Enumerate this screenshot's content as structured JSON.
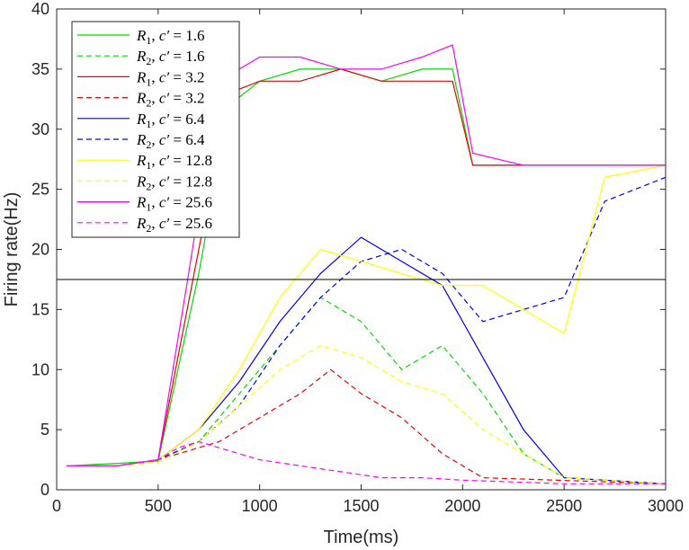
{
  "chart_data": {
    "type": "line",
    "title": "",
    "xlabel": "Time(ms)",
    "ylabel": "Firing rate(Hz)",
    "xlim": [
      0,
      3000
    ],
    "ylim": [
      0,
      40
    ],
    "xticks": [
      0,
      500,
      1000,
      1500,
      2000,
      2500,
      3000
    ],
    "yticks": [
      0,
      5,
      10,
      15,
      20,
      25,
      30,
      35,
      40
    ],
    "xtick_labels": [
      "0",
      "500",
      "1000",
      "1500",
      "2000",
      "2500",
      "3000"
    ],
    "ytick_labels": [
      "0",
      "5",
      "10",
      "15",
      "20",
      "25",
      "30",
      "35",
      "40"
    ],
    "threshold": 17.5,
    "grid": false,
    "legend_position": "top-left",
    "series": [
      {
        "name": "R1, c' = 1.6",
        "var": "R",
        "sub": "1",
        "param": "1.6",
        "color": "#00dd00",
        "dash": "solid",
        "x": [
          50,
          300,
          500,
          700,
          850,
          1000,
          1200,
          1400,
          1600,
          1800,
          1950,
          2050,
          2500,
          3000
        ],
        "y": [
          2,
          2.2,
          2.4,
          18,
          32,
          34,
          35,
          35,
          34,
          35,
          35,
          27,
          27,
          27
        ]
      },
      {
        "name": "R2, c' = 1.6",
        "var": "R",
        "sub": "2",
        "param": "1.6",
        "color": "#00dd00",
        "dash": "dashed",
        "x": [
          50,
          300,
          500,
          700,
          900,
          1100,
          1300,
          1500,
          1700,
          1900,
          2100,
          2300,
          2500,
          3000
        ],
        "y": [
          2,
          2,
          2.3,
          4,
          8,
          12,
          16,
          14,
          10,
          12,
          8,
          3,
          1,
          0.5
        ]
      },
      {
        "name": "R1, c' = 3.2",
        "var": "R",
        "sub": "1",
        "param": "3.2",
        "color": "#ee0000",
        "dash": "solid",
        "x": [
          50,
          300,
          500,
          700,
          850,
          1000,
          1200,
          1400,
          1600,
          1800,
          1950,
          2050,
          2500,
          3000
        ],
        "y": [
          2,
          2,
          2.5,
          20,
          33,
          34,
          34,
          35,
          34,
          34,
          34,
          27,
          27,
          27
        ]
      },
      {
        "name": "R2, c' = 3.2",
        "var": "R",
        "sub": "2",
        "param": "3.2",
        "color": "#ee0000",
        "dash": "dashed",
        "x": [
          50,
          300,
          500,
          800,
          1000,
          1200,
          1350,
          1500,
          1700,
          1900,
          2100,
          3000
        ],
        "y": [
          2,
          2,
          2.5,
          4,
          6,
          8,
          10,
          8,
          6,
          3,
          1,
          0.5
        ]
      },
      {
        "name": "R1, c' = 6.4",
        "var": "R",
        "sub": "1",
        "param": "6.4",
        "color": "#0000ee",
        "dash": "solid",
        "x": [
          50,
          300,
          500,
          700,
          900,
          1100,
          1300,
          1500,
          1700,
          1900,
          2100,
          2300,
          2500,
          3000
        ],
        "y": [
          2,
          2,
          2.5,
          5,
          9,
          14,
          18,
          21,
          19,
          17,
          11,
          5,
          1,
          0.5
        ]
      },
      {
        "name": "R2, c' = 6.4",
        "var": "R",
        "sub": "2",
        "param": "6.4",
        "color": "#0000ee",
        "dash": "dashed",
        "x": [
          50,
          300,
          500,
          700,
          900,
          1100,
          1300,
          1500,
          1700,
          1900,
          2100,
          2300,
          2500,
          2700,
          3000
        ],
        "y": [
          2,
          2,
          2.5,
          4,
          7,
          12,
          16,
          19,
          20,
          18,
          14,
          15,
          16,
          24,
          26
        ]
      },
      {
        "name": "R1, c' = 12.8",
        "var": "R",
        "sub": "1",
        "param": "12.8",
        "color": "#ffff00",
        "dash": "solid",
        "x": [
          50,
          300,
          500,
          700,
          900,
          1100,
          1300,
          1500,
          1700,
          1900,
          2100,
          2300,
          2500,
          2700,
          3000
        ],
        "y": [
          2,
          2,
          2.5,
          5,
          10,
          16,
          20,
          19,
          18,
          17,
          17,
          15,
          13,
          26,
          27
        ]
      },
      {
        "name": "R2, c' = 12.8",
        "var": "R",
        "sub": "2",
        "param": "12.8",
        "color": "#ffff00",
        "dash": "dashed",
        "x": [
          50,
          300,
          500,
          700,
          900,
          1100,
          1300,
          1500,
          1700,
          1900,
          2100,
          2300,
          2500,
          3000
        ],
        "y": [
          2,
          2,
          2.3,
          4,
          7,
          10,
          12,
          11,
          9,
          8,
          5,
          3,
          1,
          0.5
        ]
      },
      {
        "name": "R1, c' = 25.6",
        "var": "R",
        "sub": "1",
        "param": "25.6",
        "color": "#ff00ff",
        "dash": "solid",
        "x": [
          50,
          300,
          500,
          650,
          800,
          1000,
          1200,
          1400,
          1600,
          1800,
          1950,
          2050,
          2300,
          2600,
          3000
        ],
        "y": [
          2,
          2,
          2.5,
          18,
          34,
          36,
          36,
          35,
          35,
          36,
          37,
          28,
          27,
          27,
          27
        ]
      },
      {
        "name": "R2, c' = 25.6",
        "var": "R",
        "sub": "2",
        "param": "25.6",
        "color": "#ff00ff",
        "dash": "dashed",
        "x": [
          50,
          300,
          500,
          600,
          700,
          800,
          1000,
          1200,
          1400,
          1600,
          1800,
          2000,
          2500,
          3000
        ],
        "y": [
          2,
          2,
          2.5,
          3.5,
          4,
          3.5,
          2.5,
          2,
          1.5,
          1,
          1,
          0.8,
          0.5,
          0.5
        ]
      }
    ]
  }
}
